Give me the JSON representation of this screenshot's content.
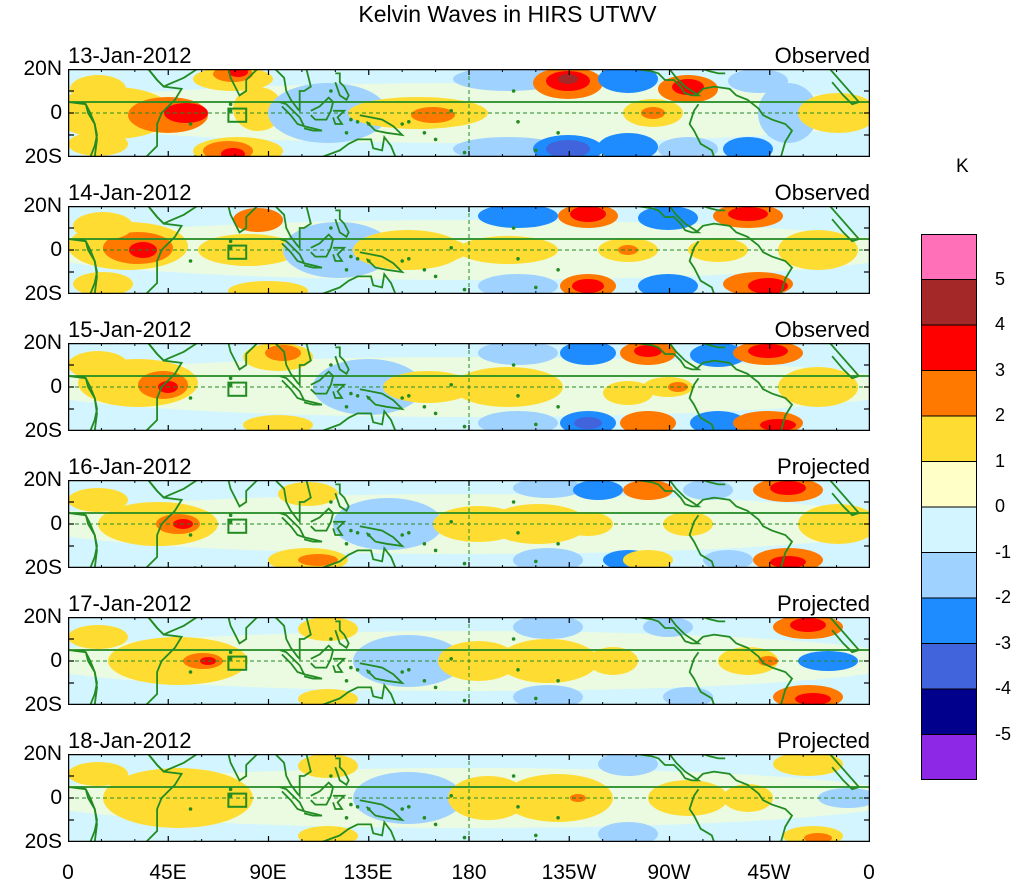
{
  "title": "Kelvin Waves in HIRS UTWV",
  "units": "K",
  "panels": [
    {
      "date": "13-Jan-2012",
      "status": "Observed"
    },
    {
      "date": "14-Jan-2012",
      "status": "Observed"
    },
    {
      "date": "15-Jan-2012",
      "status": "Observed"
    },
    {
      "date": "16-Jan-2012",
      "status": "Projected"
    },
    {
      "date": "17-Jan-2012",
      "status": "Projected"
    },
    {
      "date": "18-Jan-2012",
      "status": "Projected"
    }
  ],
  "lat_labels": [
    "20N",
    "0",
    "20S"
  ],
  "lon_labels": [
    "0",
    "45E",
    "90E",
    "135E",
    "180",
    "135W",
    "90W",
    "45W",
    "0"
  ],
  "colorbar": {
    "labels": [
      "5",
      "4",
      "3",
      "2",
      "1",
      "0",
      "-1",
      "-2",
      "-3",
      "-4",
      "-5"
    ],
    "colors": [
      "#ff70b8",
      "#a52828",
      "#ff0000",
      "#ff7800",
      "#ffdc32",
      "#ffffc8",
      "#d2f5ff",
      "#a0d2ff",
      "#1e8cff",
      "#4164dc",
      "#00008c",
      "#8c28e6"
    ]
  },
  "colors": {
    "coast": "#228b22",
    "line": "#000000"
  }
}
